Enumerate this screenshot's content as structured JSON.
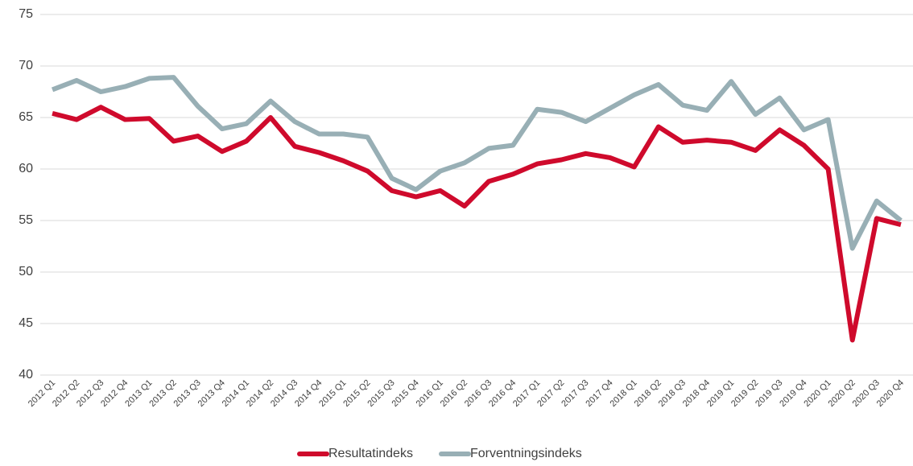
{
  "chart_data": {
    "type": "line",
    "categories": [
      "2012 Q1",
      "2012 Q2",
      "2012 Q3",
      "2012 Q4",
      "2013 Q1",
      "2013 Q2",
      "2013 Q3",
      "2013 Q4",
      "2014 Q1",
      "2014 Q2",
      "2014 Q3",
      "2014 Q4",
      "2015 Q1",
      "2015 Q2",
      "2015 Q3",
      "2015 Q4",
      "2016 Q1",
      "2016 Q2",
      "2016 Q3",
      "2016 Q4",
      "2017 Q1",
      "2017 Q2",
      "2017 Q3",
      "2017 Q4",
      "2018 Q1",
      "2018 Q2",
      "2018 Q3",
      "2018 Q4",
      "2019 Q1",
      "2019 Q2",
      "2019 Q3",
      "2019 Q4",
      "2020 Q1",
      "2020 Q2",
      "2020 Q3",
      "2020 Q4"
    ],
    "series": [
      {
        "name": "Resultatindeks",
        "color": "#cf0a2c",
        "values": [
          65.4,
          64.8,
          66.0,
          64.8,
          64.9,
          62.7,
          63.2,
          61.7,
          62.7,
          65.0,
          62.2,
          61.6,
          60.8,
          59.8,
          57.9,
          57.3,
          57.9,
          56.4,
          58.8,
          59.5,
          60.5,
          60.9,
          61.5,
          61.1,
          60.2,
          64.1,
          62.6,
          62.8,
          62.6,
          61.8,
          63.8,
          62.3,
          60.0,
          43.4,
          55.2,
          54.6
        ]
      },
      {
        "name": "Forventningsindeks",
        "color": "#98afb5",
        "values": [
          67.7,
          68.6,
          67.5,
          68.0,
          68.8,
          68.9,
          66.1,
          63.9,
          64.4,
          66.6,
          64.6,
          63.4,
          63.4,
          63.1,
          59.1,
          58.0,
          59.8,
          60.6,
          62.0,
          62.3,
          65.8,
          65.5,
          64.6,
          65.9,
          67.2,
          68.2,
          66.2,
          65.7,
          68.5,
          65.3,
          66.9,
          63.8,
          64.8,
          52.3,
          56.9,
          55.0
        ]
      }
    ],
    "ylim": [
      40,
      75
    ],
    "yticks": [
      40,
      45,
      50,
      55,
      60,
      65,
      70,
      75
    ],
    "grid": true,
    "legend": "bottom"
  }
}
